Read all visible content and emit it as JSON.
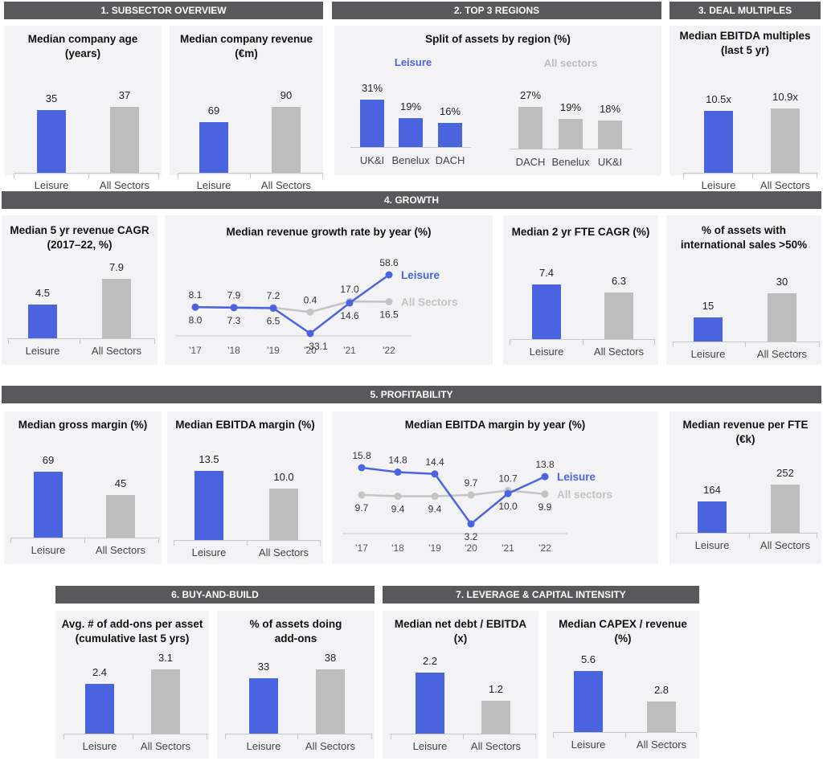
{
  "colors": {
    "leisure": "#4a64e0",
    "all": "#bdbdbd",
    "header_bg": "#58595b",
    "panel_bg": "#f3f3f5",
    "all_line": "#c4c4c4"
  },
  "headers": {
    "h1": "1. SUBSECTOR OVERVIEW",
    "h2": "2. TOP 3 REGIONS",
    "h3": "3. DEAL MULTIPLES",
    "h4": "4. GROWTH",
    "h5": "5.  PROFITABILITY",
    "h6": "6. BUY-AND-BUILD",
    "h7": "7. LEVERAGE & CAPITAL INTENSITY"
  },
  "chart_data": [
    {
      "id": "age",
      "type": "bar",
      "title": "Median company age (years)",
      "title_lines": [
        "Median company age",
        "(years)"
      ],
      "categories": [
        "Leisure",
        "All Sectors"
      ],
      "values": [
        35,
        37
      ],
      "labels": [
        "35",
        "37"
      ]
    },
    {
      "id": "revenue",
      "type": "bar",
      "title": "Median company revenue (€m)",
      "title_lines": [
        "Median company revenue",
        "(€m)"
      ],
      "categories": [
        "Leisure",
        "All Sectors"
      ],
      "values": [
        69,
        90
      ],
      "labels": [
        "69",
        "90"
      ]
    },
    {
      "id": "regions",
      "type": "bar",
      "title": "Split of assets by region (%)",
      "title_lines": [
        "Split of assets by region (%)"
      ],
      "series": [
        {
          "name": "Leisure",
          "categories": [
            "UK&I",
            "Benelux",
            "DACH"
          ],
          "values": [
            31,
            19,
            16
          ],
          "labels": [
            "31%",
            "19%",
            "16%"
          ]
        },
        {
          "name": "All sectors",
          "categories": [
            "DACH",
            "Benelux",
            "UK&I"
          ],
          "values": [
            27,
            19,
            18
          ],
          "labels": [
            "27%",
            "19%",
            "18%"
          ]
        }
      ]
    },
    {
      "id": "ebitda_mult",
      "type": "bar",
      "title": "Median EBITDA multiples (last 5 yr)",
      "title_lines": [
        "Median EBITDA multiples",
        "(last 5 yr)"
      ],
      "categories": [
        "Leisure",
        "All Sectors"
      ],
      "values": [
        10.5,
        10.9
      ],
      "labels": [
        "10.5x",
        "10.9x"
      ]
    },
    {
      "id": "cagr5",
      "type": "bar",
      "title": "Median 5 yr revenue CAGR (2017–22, %)",
      "title_lines": [
        "Median 5 yr revenue CAGR",
        "(2017–22, %)"
      ],
      "categories": [
        "Leisure",
        "All Sectors"
      ],
      "values": [
        4.5,
        7.9
      ],
      "labels": [
        "4.5",
        "7.9"
      ]
    },
    {
      "id": "growth_line",
      "type": "line",
      "title": "Median revenue growth rate by year (%)",
      "title_lines": [
        "Median revenue growth rate by year (%)"
      ],
      "x": [
        "'17",
        "'18",
        "'19",
        "'20",
        "'21",
        "'22"
      ],
      "series": [
        {
          "name": "Leisure",
          "values": [
            8.0,
            7.3,
            6.5,
            -33.1,
            14.6,
            58.6
          ],
          "labels": [
            "8.0",
            "7.3",
            "6.5",
            "-33.1",
            "14.6",
            "58.6"
          ]
        },
        {
          "name": "All Sectors",
          "values": [
            8.1,
            7.9,
            7.2,
            0.4,
            17.0,
            16.5
          ],
          "labels": [
            "8.1",
            "7.9",
            "7.2",
            "0.4",
            "17.0",
            "16.5"
          ]
        }
      ]
    },
    {
      "id": "fte_cagr",
      "type": "bar",
      "title": "Median 2 yr FTE CAGR (%)",
      "title_lines": [
        "Median 2 yr FTE CAGR (%)"
      ],
      "categories": [
        "Leisure",
        "All Sectors"
      ],
      "values": [
        7.4,
        6.3
      ],
      "labels": [
        "7.4",
        "6.3"
      ]
    },
    {
      "id": "intl",
      "type": "bar",
      "title": "% of assets with international sales >50%",
      "title_lines": [
        "% of assets with",
        "international sales >50%"
      ],
      "categories": [
        "Leisure",
        "All Sectors"
      ],
      "values": [
        15,
        30
      ],
      "labels": [
        "15",
        "30"
      ]
    },
    {
      "id": "gross",
      "type": "bar",
      "title": "Median gross margin (%)",
      "title_lines": [
        "Median gross margin (%)"
      ],
      "categories": [
        "Leisure",
        "All Sectors"
      ],
      "values": [
        69,
        45
      ],
      "labels": [
        "69",
        "45"
      ]
    },
    {
      "id": "ebitda_margin",
      "type": "bar",
      "title": "Median EBITDA margin (%)",
      "title_lines": [
        "Median EBITDA margin (%)"
      ],
      "categories": [
        "Leisure",
        "All Sectors"
      ],
      "values": [
        13.5,
        10.0
      ],
      "labels": [
        "13.5",
        "10.0"
      ]
    },
    {
      "id": "margin_line",
      "type": "line",
      "title": "Median EBITDA margin by year (%)",
      "title_lines": [
        "Median EBITDA margin by year (%)"
      ],
      "x": [
        "'17",
        "'18",
        "'19",
        "'20",
        "'21",
        "'22"
      ],
      "series": [
        {
          "name": "Leisure",
          "values": [
            15.8,
            14.8,
            14.4,
            3.2,
            10.0,
            13.8
          ],
          "labels": [
            "15.8",
            "14.8",
            "14.4",
            "3.2",
            "10.0",
            "13.8"
          ]
        },
        {
          "name": "All sectors",
          "values": [
            9.7,
            9.4,
            9.4,
            9.7,
            10.7,
            9.9
          ],
          "labels": [
            "9.7",
            "9.4",
            "9.4",
            "9.7",
            "10.7",
            "9.9"
          ]
        }
      ]
    },
    {
      "id": "rev_fte",
      "type": "bar",
      "title": "Median revenue per FTE (€k)",
      "title_lines": [
        "Median revenue per FTE",
        "(€k)"
      ],
      "categories": [
        "Leisure",
        "All Sectors"
      ],
      "values": [
        164,
        252
      ],
      "labels": [
        "164",
        "252"
      ]
    },
    {
      "id": "addons",
      "type": "bar",
      "title": "Avg. # of add-ons per asset (cumulative last 5 yrs)",
      "title_lines": [
        "Avg. # of add-ons per asset",
        "(cumulative last 5 yrs)"
      ],
      "categories": [
        "Leisure",
        "All Sectors"
      ],
      "values": [
        2.4,
        3.1
      ],
      "labels": [
        "2.4",
        "3.1"
      ]
    },
    {
      "id": "addons_pct",
      "type": "bar",
      "title": "% of assets doing add-ons",
      "title_lines": [
        "% of assets doing",
        "add-ons"
      ],
      "categories": [
        "Leisure",
        "All Sectors"
      ],
      "values": [
        33,
        38
      ],
      "labels": [
        "33",
        "38"
      ]
    },
    {
      "id": "net_debt",
      "type": "bar",
      "title": "Median net debt / EBITDA (x)",
      "title_lines": [
        "Median net debt / EBITDA",
        "(x)"
      ],
      "categories": [
        "Leisure",
        "All Sectors"
      ],
      "values": [
        2.2,
        1.2
      ],
      "labels": [
        "2.2",
        "1.2"
      ]
    },
    {
      "id": "capex",
      "type": "bar",
      "title": "Median CAPEX / revenue (%)",
      "title_lines": [
        "Median CAPEX / revenue",
        "(%)"
      ],
      "categories": [
        "Leisure",
        "All Sectors"
      ],
      "values": [
        5.6,
        2.8
      ],
      "labels": [
        "5.6",
        "2.8"
      ]
    }
  ]
}
